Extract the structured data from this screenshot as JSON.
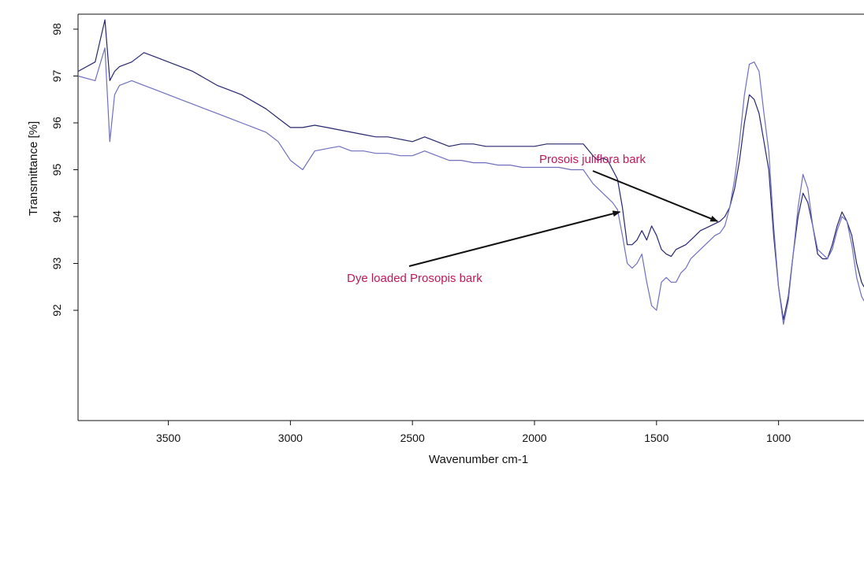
{
  "chart_data": {
    "type": "line",
    "title": "",
    "xlabel": "Wavenumber cm-1",
    "ylabel": "Transmittance [%]",
    "x_reversed": true,
    "xlim": [
      3870,
      650
    ],
    "ylim": [
      90.3,
      98.3
    ],
    "x_ticks": [
      {
        "value": 3500,
        "label": "3500"
      },
      {
        "value": 3000,
        "label": "3000"
      },
      {
        "value": 2500,
        "label": "2500"
      },
      {
        "value": 2000,
        "label": "2000"
      },
      {
        "value": 1500,
        "label": "1500"
      },
      {
        "value": 1000,
        "label": "1000"
      }
    ],
    "y_ticks": [
      {
        "value": 98,
        "label": "98"
      },
      {
        "value": 97,
        "label": "97"
      },
      {
        "value": 96,
        "label": "96"
      },
      {
        "value": 95,
        "label": "95"
      },
      {
        "value": 94,
        "label": "94"
      },
      {
        "value": 93,
        "label": "93"
      },
      {
        "value": 92,
        "label": "92"
      }
    ],
    "grid": false,
    "series": [
      {
        "color": "#27276e",
        "x": [
          3870,
          3800,
          3760,
          3740,
          3720,
          3700,
          3650,
          3600,
          3550,
          3500,
          3450,
          3400,
          3350,
          3300,
          3250,
          3200,
          3150,
          3100,
          3050,
          3000,
          2950,
          2900,
          2850,
          2800,
          2750,
          2700,
          2650,
          2600,
          2550,
          2500,
          2450,
          2400,
          2350,
          2300,
          2250,
          2200,
          2150,
          2100,
          2050,
          2000,
          1950,
          1900,
          1850,
          1800,
          1760,
          1740,
          1720,
          1700,
          1680,
          1660,
          1640,
          1620,
          1600,
          1580,
          1560,
          1540,
          1520,
          1500,
          1480,
          1460,
          1440,
          1420,
          1400,
          1380,
          1360,
          1340,
          1320,
          1300,
          1280,
          1260,
          1240,
          1220,
          1200,
          1180,
          1160,
          1140,
          1120,
          1100,
          1080,
          1060,
          1040,
          1020,
          1000,
          980,
          960,
          940,
          920,
          900,
          880,
          860,
          840,
          820,
          800,
          780,
          760,
          740,
          720,
          700,
          680,
          660,
          650
        ],
        "values": [
          97.1,
          97.3,
          98.2,
          96.9,
          97.1,
          97.2,
          97.3,
          97.5,
          97.4,
          97.3,
          97.2,
          97.1,
          96.95,
          96.8,
          96.7,
          96.6,
          96.45,
          96.3,
          96.1,
          95.9,
          95.9,
          95.95,
          95.9,
          95.85,
          95.8,
          95.75,
          95.7,
          95.7,
          95.65,
          95.6,
          95.7,
          95.6,
          95.5,
          95.55,
          95.55,
          95.5,
          95.5,
          95.5,
          95.5,
          95.5,
          95.55,
          95.55,
          95.55,
          95.55,
          95.3,
          95.2,
          95.25,
          95.2,
          95.0,
          94.8,
          94.2,
          93.4,
          93.4,
          93.5,
          93.7,
          93.5,
          93.8,
          93.6,
          93.3,
          93.2,
          93.15,
          93.3,
          93.35,
          93.4,
          93.5,
          93.6,
          93.7,
          93.75,
          93.8,
          93.85,
          93.9,
          94.0,
          94.2,
          94.6,
          95.2,
          96.0,
          96.6,
          96.5,
          96.2,
          95.6,
          95.0,
          93.6,
          92.5,
          91.8,
          92.3,
          93.2,
          94.0,
          94.5,
          94.3,
          93.8,
          93.2,
          93.1,
          93.1,
          93.4,
          93.8,
          94.1,
          93.9,
          93.6,
          93.0,
          92.6,
          92.5
        ]
      },
      {
        "color": "#6f6fbf",
        "x": [
          3870,
          3800,
          3760,
          3740,
          3720,
          3700,
          3650,
          3600,
          3550,
          3500,
          3450,
          3400,
          3350,
          3300,
          3250,
          3200,
          3150,
          3100,
          3050,
          3000,
          2950,
          2900,
          2850,
          2800,
          2750,
          2700,
          2650,
          2600,
          2550,
          2500,
          2450,
          2400,
          2350,
          2300,
          2250,
          2200,
          2150,
          2100,
          2050,
          2000,
          1950,
          1900,
          1850,
          1800,
          1760,
          1740,
          1720,
          1700,
          1680,
          1660,
          1640,
          1620,
          1600,
          1580,
          1560,
          1540,
          1520,
          1500,
          1480,
          1460,
          1440,
          1420,
          1400,
          1380,
          1360,
          1340,
          1320,
          1300,
          1280,
          1260,
          1240,
          1220,
          1200,
          1180,
          1160,
          1140,
          1120,
          1100,
          1080,
          1060,
          1040,
          1020,
          1000,
          980,
          960,
          940,
          920,
          900,
          880,
          860,
          840,
          820,
          800,
          780,
          760,
          740,
          720,
          700,
          680,
          660,
          650
        ],
        "values": [
          97.0,
          96.9,
          97.6,
          95.6,
          96.6,
          96.8,
          96.9,
          96.8,
          96.7,
          96.6,
          96.5,
          96.4,
          96.3,
          96.2,
          96.1,
          96.0,
          95.9,
          95.8,
          95.6,
          95.2,
          95.0,
          95.4,
          95.45,
          95.5,
          95.4,
          95.4,
          95.35,
          95.35,
          95.3,
          95.3,
          95.4,
          95.3,
          95.2,
          95.2,
          95.15,
          95.15,
          95.1,
          95.1,
          95.05,
          95.05,
          95.05,
          95.05,
          95.0,
          95.0,
          94.7,
          94.6,
          94.5,
          94.4,
          94.3,
          94.15,
          93.6,
          93.0,
          92.9,
          93.0,
          93.2,
          92.6,
          92.1,
          92.0,
          92.6,
          92.7,
          92.6,
          92.6,
          92.8,
          92.9,
          93.1,
          93.2,
          93.3,
          93.4,
          93.5,
          93.6,
          93.65,
          93.8,
          94.2,
          94.8,
          95.6,
          96.6,
          97.25,
          97.3,
          97.1,
          96.2,
          95.4,
          93.8,
          92.5,
          91.7,
          92.2,
          93.2,
          94.2,
          94.9,
          94.6,
          93.8,
          93.3,
          93.2,
          93.1,
          93.3,
          93.7,
          94.0,
          93.9,
          93.4,
          92.7,
          92.3,
          92.2
        ]
      }
    ],
    "annotations": [
      {
        "text": "Prosois juliflora bark",
        "color": "#c0185a",
        "point_x": 1250,
        "point_y": 93.9
      },
      {
        "text": "Dye loaded Prosopis bark",
        "color": "#c0185a",
        "point_x": 1650,
        "point_y": 94.1
      }
    ]
  }
}
